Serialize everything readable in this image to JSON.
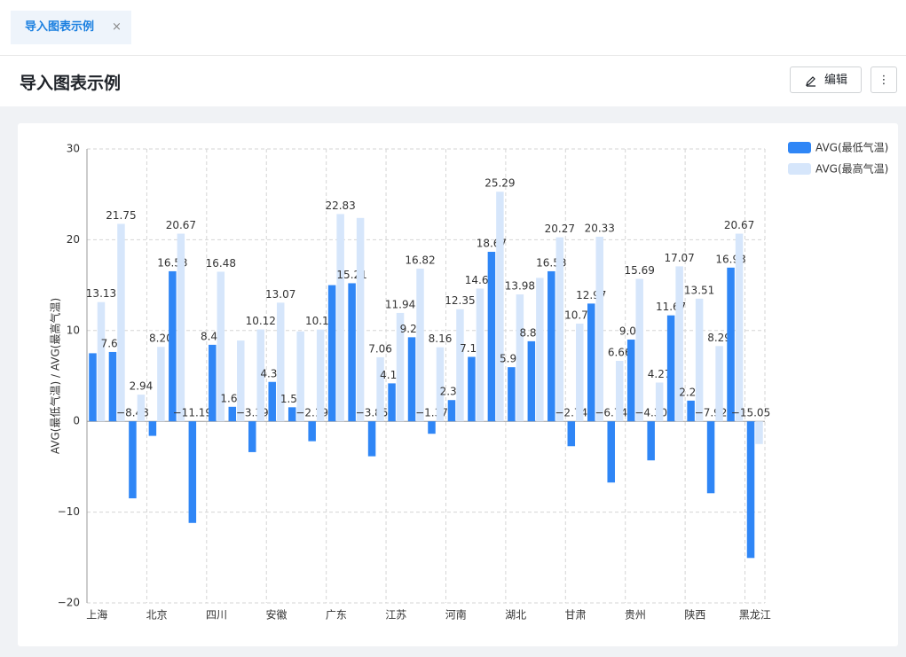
{
  "tab": {
    "title": "导入图表示例"
  },
  "header": {
    "title": "导入图表示例",
    "edit_button": "编辑"
  },
  "chart_data": {
    "type": "bar",
    "y_label": "AVG(最低气温) / AVG(最高气温)",
    "categories": [
      "上海",
      null,
      null,
      "北京",
      null,
      null,
      "四川",
      null,
      null,
      "安徽",
      null,
      null,
      "广东",
      null,
      null,
      "江苏",
      null,
      null,
      "河南",
      null,
      null,
      "湖北",
      null,
      null,
      "甘肃",
      null,
      null,
      "贵州",
      null,
      null,
      "陕西",
      null,
      null,
      "黑龙江"
    ],
    "series": [
      {
        "name": "AVG(最低气温)",
        "color": "#2f86f6",
        "values": [
          7.5,
          7.64,
          -8.48,
          -1.6,
          16.53,
          -11.19,
          8.43,
          1.6,
          -3.39,
          4.34,
          1.55,
          -2.19,
          15.0,
          15.21,
          -3.85,
          4.18,
          9.26,
          -1.37,
          2.34,
          7.1,
          18.67,
          5.96,
          8.82,
          16.53,
          -2.74,
          12.97,
          -6.74,
          9.0,
          -4.3,
          11.67,
          2.28,
          -7.92,
          16.93,
          -15.05
        ],
        "value_labels": [
          null,
          "7.64",
          "−8.48",
          null,
          "16.53",
          "−11.19",
          "8.43",
          "1.60",
          "−3.39",
          "4.34",
          "1.55",
          "−2.19",
          null,
          "15.21",
          "−3.85",
          "4.18",
          "9.26",
          "−1.37",
          "2.34",
          "7.10",
          "18.67",
          "5.96",
          "8.82",
          "16.53",
          "−2.74",
          "12.97",
          "−6.74",
          "9.00",
          "−4.30",
          "11.67",
          "2.28",
          "−7.92",
          "16.93",
          "−15.05"
        ]
      },
      {
        "name": "AVG(最高气温)",
        "color": "#d6e6fb",
        "values": [
          13.13,
          21.75,
          2.94,
          8.2,
          20.67,
          null,
          16.48,
          8.9,
          10.12,
          13.07,
          9.9,
          10.11,
          22.83,
          22.4,
          7.06,
          11.94,
          16.82,
          8.16,
          12.35,
          14.62,
          25.29,
          13.98,
          15.8,
          20.27,
          10.76,
          20.33,
          6.66,
          15.69,
          4.27,
          17.07,
          13.51,
          8.29,
          20.67,
          -2.5
        ],
        "value_labels": [
          "13.13",
          "21.75",
          "2.94",
          "8.20",
          "20.67",
          null,
          "16.48",
          null,
          "10.12",
          "13.07",
          null,
          "10.11",
          "22.83",
          null,
          "7.06",
          "11.94",
          "16.82",
          "8.16",
          "12.35",
          "14.62",
          "25.29",
          "13.98",
          null,
          "20.27",
          "10.76",
          "20.33",
          "6.66",
          "15.69",
          "4.27",
          "17.07",
          "13.51",
          "8.29",
          "20.67",
          null
        ]
      }
    ],
    "ylim": [
      -20,
      30
    ],
    "yticks": [
      {
        "value": -20,
        "label": "−20"
      },
      {
        "value": -10,
        "label": "−10"
      },
      0,
      10,
      20,
      30
    ],
    "grid": true,
    "legend": "top-right"
  }
}
